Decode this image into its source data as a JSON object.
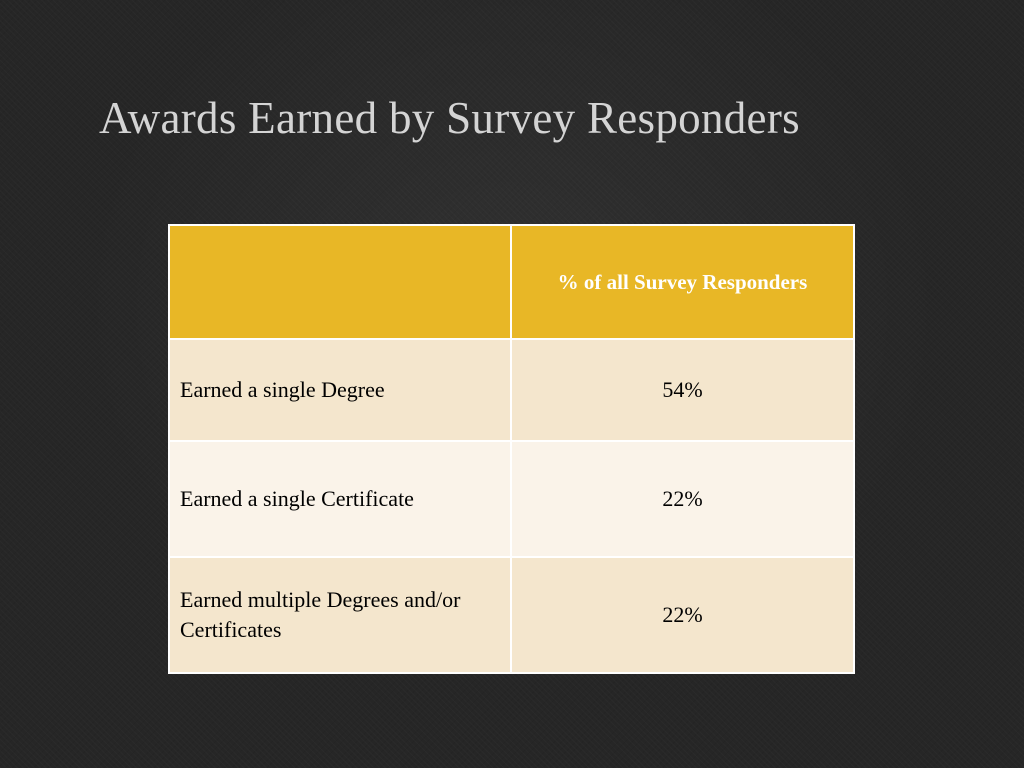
{
  "slide": {
    "title": "Awards Earned by Survey Responders"
  },
  "table": {
    "header": {
      "empty": "",
      "value_column": "% of all Survey Responders"
    },
    "rows": [
      {
        "label": "Earned a single Degree",
        "value": "54%"
      },
      {
        "label": "Earned a single Certificate",
        "value": "22%"
      },
      {
        "label": "Earned multiple Degrees and/or Certificates",
        "value": "22%"
      }
    ]
  },
  "colors": {
    "background": "#262626",
    "title_text": "#d4d4d4",
    "header_fill": "#e8b726",
    "row_fill_dark": "#f4e6cd",
    "row_fill_light": "#faf3e9"
  }
}
